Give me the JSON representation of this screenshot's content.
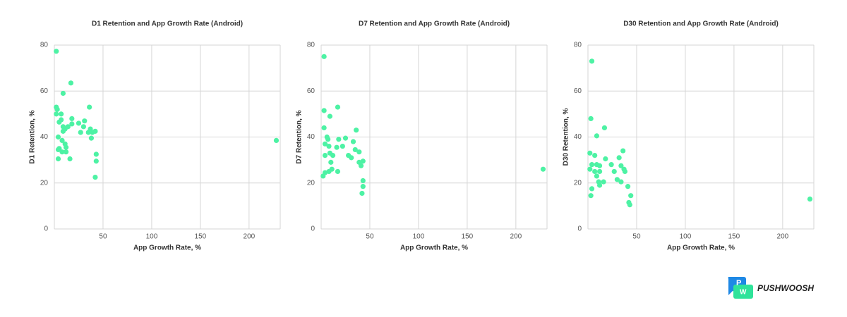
{
  "chart_data": [
    {
      "type": "scatter",
      "title": "D1 Retention and App Growth Rate (Android)",
      "x_label": "App Growth Rate, %",
      "y_label": "D1 Retention, %",
      "x": [
        2,
        2,
        3,
        2,
        7,
        9,
        17,
        7,
        5,
        9,
        9,
        11,
        14,
        18,
        18,
        25,
        30,
        31,
        36,
        37,
        35,
        39,
        42,
        38,
        27,
        4,
        5,
        8,
        11,
        12,
        8,
        12,
        4,
        4,
        16,
        43,
        43,
        42,
        228
      ],
      "values": [
        77.3,
        53,
        52,
        50,
        50,
        59,
        63.5,
        47.5,
        46.5,
        44.5,
        42.5,
        43.5,
        44.5,
        48,
        45.7,
        46,
        44.5,
        47,
        53,
        43.5,
        42,
        42,
        42.5,
        39.5,
        42,
        40,
        35,
        38.5,
        37,
        35.5,
        33.5,
        33.5,
        34.5,
        30.5,
        30.5,
        32.5,
        29.5,
        22.5,
        38.5
      ],
      "color": "#4df2a4",
      "xlim": [
        0,
        232
      ],
      "ylim": [
        0,
        80
      ],
      "xticks": [
        50,
        100,
        150,
        200
      ],
      "yticks": [
        0,
        20,
        40,
        60,
        80
      ],
      "grid": true
    },
    {
      "type": "scatter",
      "title": "D7 Retention and App Growth Rate (Android)",
      "x_label": "App Growth Rate, %",
      "y_label": "D7 Retention, %",
      "x": [
        3,
        3,
        17,
        9,
        3,
        36,
        6,
        7,
        18,
        25,
        33,
        4,
        8,
        16,
        22,
        35,
        39,
        4,
        9,
        12,
        28,
        31,
        43,
        39,
        10,
        11,
        8,
        17,
        41,
        4,
        2,
        43,
        43,
        42,
        228
      ],
      "values": [
        75,
        51.5,
        53,
        49,
        44,
        43,
        40,
        39,
        39,
        39.5,
        38,
        37,
        36,
        35.5,
        36,
        34.5,
        33.5,
        32,
        33,
        32,
        32,
        31,
        29.5,
        29,
        29,
        26,
        25,
        25,
        27.5,
        24.5,
        23,
        21,
        18.5,
        15.5,
        26
      ],
      "color": "#4df2a4",
      "xlim": [
        0,
        232
      ],
      "ylim": [
        0,
        80
      ],
      "xticks": [
        50,
        100,
        150,
        200
      ],
      "yticks": [
        0,
        20,
        40,
        60,
        80
      ],
      "grid": true
    },
    {
      "type": "scatter",
      "title": "D30 Retention and App Growth Rate (Android)",
      "x_label": "App Growth Rate, %",
      "y_label": "D30 Retention, %",
      "x": [
        4,
        3,
        17,
        9,
        36,
        2,
        7,
        18,
        32,
        4,
        9,
        24,
        34,
        12,
        2,
        7,
        12,
        37,
        38,
        27,
        9,
        16,
        30,
        12,
        11,
        34,
        41,
        4,
        3,
        44,
        42,
        43,
        228
      ],
      "values": [
        73,
        48,
        44,
        40.5,
        34,
        33,
        32,
        30.5,
        31,
        28,
        28,
        28,
        27.5,
        27.5,
        26,
        25,
        25,
        26,
        25,
        25,
        23,
        20.5,
        21.5,
        19,
        20.5,
        20.5,
        18.5,
        17.5,
        14.5,
        14.5,
        11.5,
        10.5,
        13
      ],
      "color": "#4df2a4",
      "xlim": [
        0,
        232
      ],
      "ylim": [
        0,
        80
      ],
      "xticks": [
        50,
        100,
        150,
        200
      ],
      "yticks": [
        0,
        20,
        40,
        60,
        80
      ],
      "grid": true
    }
  ],
  "logo": {
    "icon_letters": [
      "P",
      "W"
    ],
    "text": "PUSHWOOSH"
  }
}
